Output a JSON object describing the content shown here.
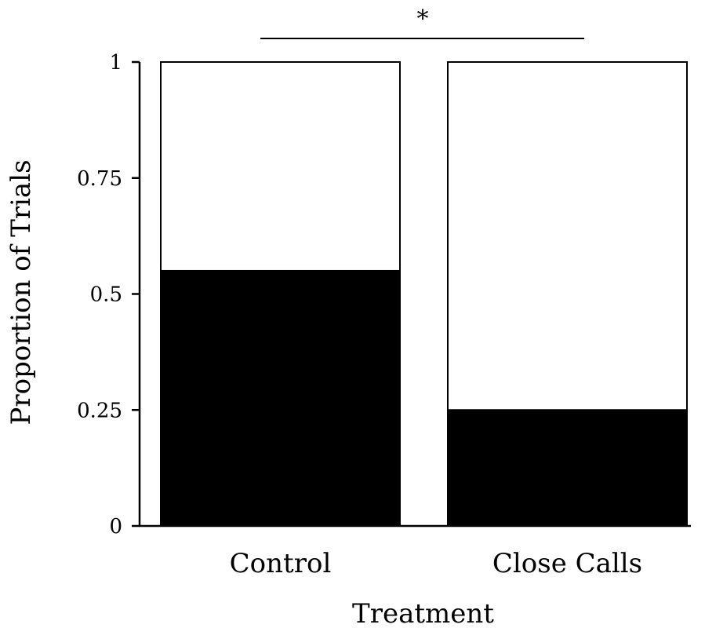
{
  "chart_data": {
    "type": "bar",
    "stacked": true,
    "categories": [
      "Control",
      "Close Calls"
    ],
    "series": [
      {
        "values": [
          0.55,
          0.25
        ],
        "color": "#000000"
      },
      {
        "values": [
          0.45,
          0.75
        ],
        "color": "#ffffff"
      }
    ],
    "xlabel": "Treatment",
    "ylabel": "Proportion of Trials",
    "ylim": [
      0,
      1
    ],
    "yticks": [
      0,
      0.25,
      0.5,
      0.75,
      1
    ],
    "ytick_labels": [
      "0",
      "0.25",
      "0.5",
      "0.75",
      "1"
    ],
    "grid": false,
    "annotations": [
      {
        "text": "*",
        "type": "significance-bracket",
        "between": [
          "Control",
          "Close Calls"
        ]
      }
    ]
  }
}
